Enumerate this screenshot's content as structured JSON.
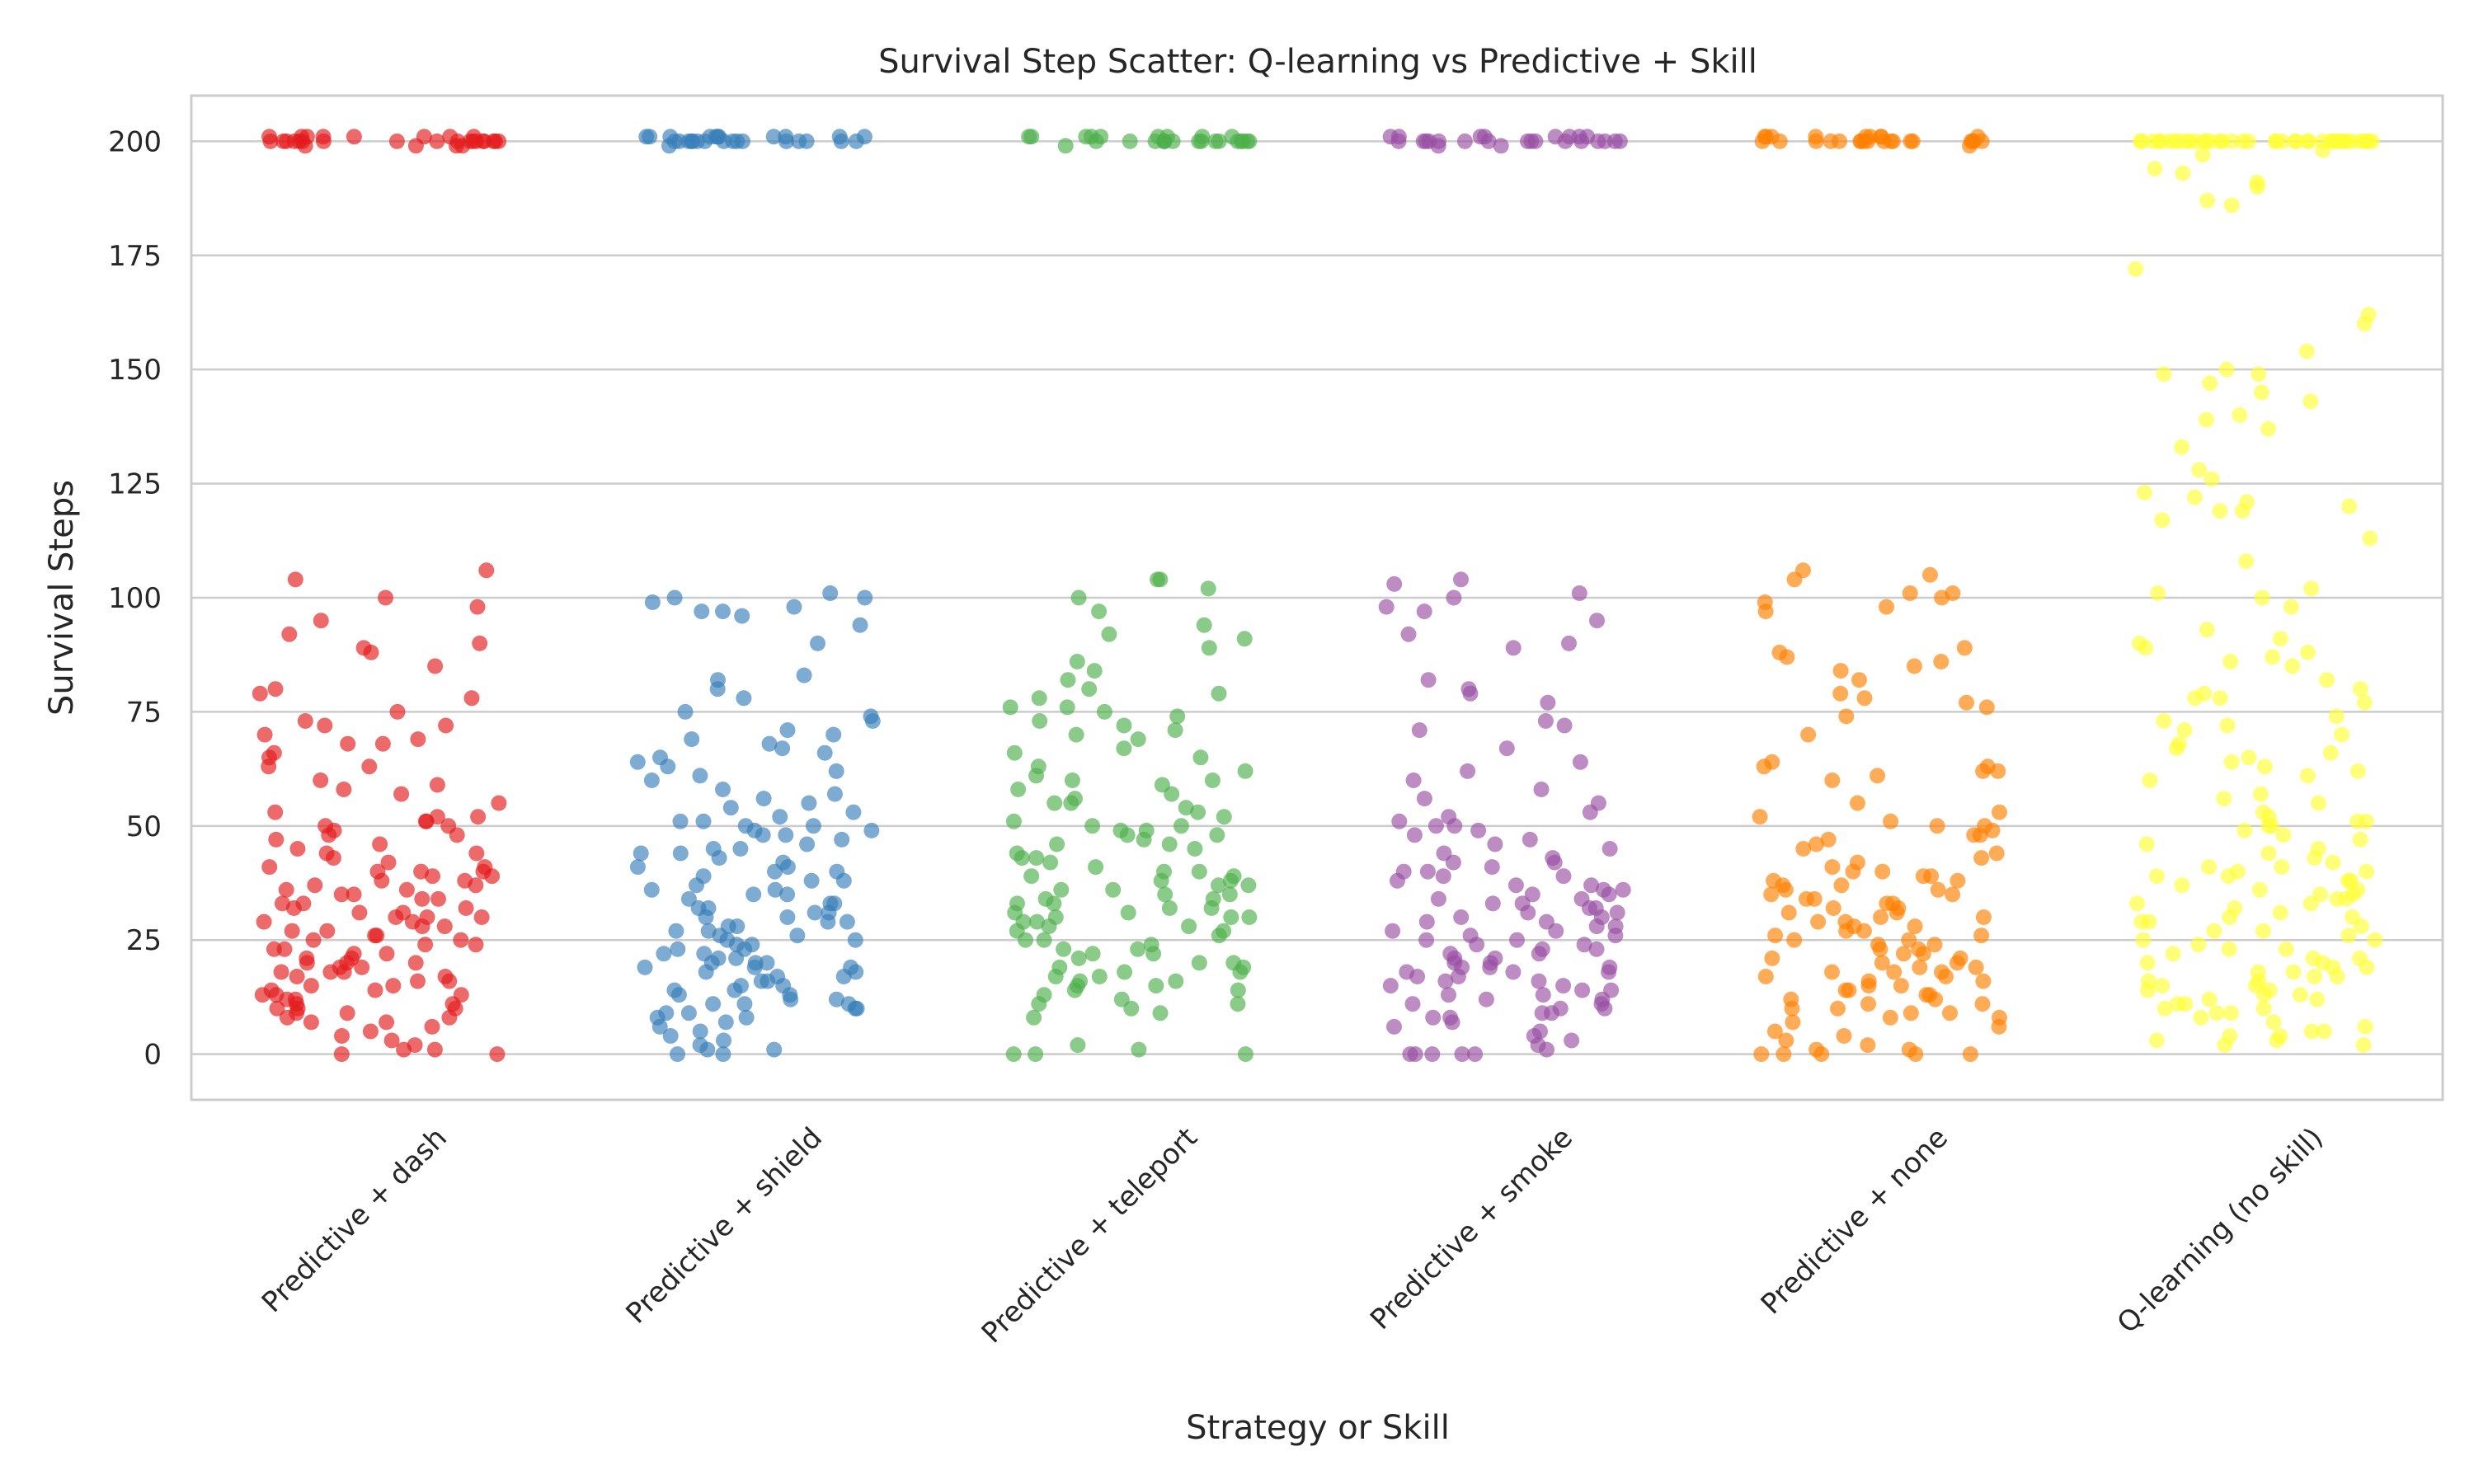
{
  "chart_data": {
    "type": "scatter",
    "title": "Survival Step Scatter: Q-learning vs Predictive + Skill",
    "xlabel": "Strategy or Skill",
    "ylabel": "Survival Steps",
    "ylim": [
      -10,
      210
    ],
    "yticks": [
      0,
      25,
      50,
      75,
      100,
      125,
      150,
      175,
      200
    ],
    "grid": true,
    "legend": "none",
    "categories": [
      "Predictive + dash",
      "Predictive + shield",
      "Predictive + teleport",
      "Predictive + smoke",
      "Predictive + none",
      "Q-learning (no skill)"
    ],
    "series": [
      {
        "category": "Predictive + dash",
        "color": "#e41a1c",
        "values": [
          200,
          201,
          200,
          199,
          200,
          201,
          200,
          200,
          201,
          199,
          200,
          200,
          201,
          200,
          200,
          199,
          201,
          200,
          200,
          200,
          201,
          200,
          199,
          200,
          200,
          201,
          200,
          200,
          200,
          201,
          106,
          104,
          100,
          98,
          95,
          92,
          90,
          89,
          88,
          85,
          80,
          79,
          78,
          75,
          73,
          72,
          72,
          70,
          69,
          68,
          68,
          66,
          65,
          63,
          63,
          60,
          59,
          58,
          57,
          55,
          53,
          52,
          52,
          51,
          51,
          50,
          50,
          49,
          48,
          48,
          47,
          46,
          45,
          44,
          44,
          43,
          42,
          41,
          41,
          40,
          40,
          40,
          39,
          39,
          38,
          38,
          37,
          37,
          36,
          36,
          35,
          35,
          34,
          34,
          33,
          33,
          32,
          32,
          31,
          31,
          30,
          30,
          30,
          29,
          29,
          28,
          28,
          27,
          27,
          26,
          26,
          25,
          25,
          24,
          24,
          23,
          23,
          22,
          22,
          21,
          21,
          20,
          20,
          20,
          19,
          19,
          18,
          18,
          18,
          17,
          17,
          16,
          16,
          15,
          15,
          14,
          14,
          13,
          13,
          13,
          12,
          12,
          11,
          11,
          10,
          10,
          10,
          9,
          9,
          8,
          8,
          7,
          7,
          6,
          5,
          4,
          3,
          2,
          1,
          1,
          0,
          0
        ]
      },
      {
        "category": "Predictive + shield",
        "color": "#377eb8",
        "values": [
          201,
          200,
          201,
          200,
          200,
          201,
          200,
          199,
          200,
          201,
          200,
          200,
          201,
          200,
          200,
          201,
          200,
          201,
          200,
          200,
          201,
          200,
          200,
          201,
          200,
          201,
          200,
          201,
          101,
          100,
          100,
          99,
          98,
          97,
          97,
          96,
          94,
          90,
          83,
          82,
          80,
          78,
          75,
          74,
          73,
          71,
          70,
          69,
          68,
          67,
          66,
          65,
          64,
          63,
          62,
          61,
          60,
          58,
          57,
          56,
          55,
          54,
          53,
          52,
          51,
          51,
          50,
          50,
          49,
          49,
          48,
          48,
          47,
          46,
          45,
          45,
          44,
          44,
          43,
          42,
          41,
          41,
          40,
          40,
          39,
          38,
          38,
          37,
          36,
          36,
          35,
          35,
          34,
          33,
          33,
          32,
          32,
          31,
          31,
          30,
          30,
          29,
          29,
          28,
          28,
          27,
          27,
          26,
          26,
          25,
          25,
          24,
          24,
          23,
          23,
          22,
          22,
          21,
          21,
          20,
          20,
          20,
          19,
          19,
          19,
          18,
          18,
          17,
          17,
          16,
          16,
          15,
          15,
          14,
          14,
          13,
          13,
          12,
          12,
          11,
          11,
          11,
          10,
          10,
          9,
          9,
          8,
          8,
          7,
          6,
          5,
          4,
          3,
          2,
          1,
          1,
          0,
          0
        ]
      },
      {
        "category": "Predictive + teleport",
        "color": "#4daf4a",
        "values": [
          200,
          201,
          200,
          200,
          199,
          200,
          201,
          200,
          200,
          201,
          200,
          200,
          201,
          200,
          200,
          201,
          200,
          200,
          201,
          200,
          201,
          200,
          201,
          200,
          201,
          200,
          104,
          104,
          102,
          100,
          97,
          94,
          92,
          91,
          89,
          86,
          84,
          82,
          80,
          79,
          78,
          76,
          76,
          75,
          74,
          73,
          72,
          71,
          70,
          69,
          67,
          66,
          65,
          63,
          62,
          61,
          60,
          60,
          59,
          58,
          57,
          56,
          55,
          55,
          54,
          53,
          52,
          51,
          50,
          50,
          49,
          49,
          48,
          48,
          47,
          46,
          46,
          45,
          44,
          43,
          43,
          42,
          41,
          40,
          40,
          39,
          39,
          38,
          38,
          37,
          37,
          36,
          36,
          35,
          35,
          34,
          34,
          33,
          33,
          32,
          32,
          31,
          31,
          30,
          30,
          30,
          29,
          29,
          28,
          28,
          27,
          27,
          26,
          25,
          25,
          24,
          23,
          23,
          22,
          22,
          21,
          20,
          20,
          19,
          19,
          18,
          18,
          17,
          17,
          16,
          16,
          15,
          15,
          14,
          14,
          13,
          12,
          11,
          11,
          10,
          9,
          8,
          2,
          1,
          0,
          0,
          0
        ]
      },
      {
        "category": "Predictive + smoke",
        "color": "#984ea3",
        "values": [
          200,
          201,
          200,
          200,
          199,
          201,
          200,
          200,
          201,
          200,
          200,
          200,
          201,
          200,
          199,
          200,
          201,
          200,
          200,
          201,
          200,
          201,
          200,
          200,
          201,
          200,
          104,
          103,
          101,
          100,
          98,
          97,
          95,
          92,
          90,
          89,
          82,
          80,
          79,
          77,
          73,
          72,
          71,
          67,
          64,
          62,
          60,
          58,
          56,
          55,
          53,
          52,
          51,
          50,
          50,
          49,
          48,
          47,
          46,
          45,
          44,
          43,
          42,
          42,
          41,
          40,
          40,
          39,
          39,
          38,
          37,
          37,
          36,
          36,
          35,
          35,
          34,
          34,
          33,
          33,
          32,
          32,
          31,
          31,
          30,
          30,
          29,
          29,
          28,
          28,
          27,
          27,
          26,
          26,
          25,
          25,
          24,
          24,
          23,
          23,
          22,
          22,
          21,
          21,
          20,
          20,
          19,
          19,
          19,
          18,
          18,
          18,
          17,
          17,
          16,
          16,
          15,
          15,
          14,
          14,
          13,
          13,
          12,
          12,
          11,
          11,
          10,
          10,
          9,
          9,
          8,
          8,
          7,
          6,
          5,
          4,
          3,
          2,
          1,
          0,
          0,
          0,
          0,
          0
        ]
      },
      {
        "category": "Predictive + none",
        "color": "#ff7f00",
        "values": [
          200,
          201,
          200,
          200,
          201,
          200,
          200,
          199,
          200,
          201,
          200,
          200,
          201,
          200,
          200,
          201,
          200,
          200,
          201,
          200,
          200,
          201,
          200,
          201,
          200,
          200,
          201,
          200,
          106,
          105,
          104,
          101,
          101,
          100,
          99,
          98,
          97,
          89,
          88,
          87,
          86,
          85,
          84,
          82,
          79,
          78,
          77,
          76,
          74,
          70,
          64,
          63,
          63,
          62,
          62,
          61,
          60,
          55,
          53,
          52,
          51,
          50,
          50,
          49,
          48,
          48,
          47,
          46,
          45,
          44,
          43,
          42,
          41,
          40,
          40,
          39,
          39,
          38,
          38,
          37,
          37,
          36,
          36,
          35,
          35,
          34,
          34,
          33,
          33,
          32,
          32,
          31,
          31,
          30,
          30,
          29,
          29,
          28,
          28,
          27,
          27,
          26,
          26,
          25,
          25,
          24,
          24,
          23,
          23,
          22,
          22,
          21,
          21,
          20,
          20,
          19,
          19,
          18,
          18,
          18,
          17,
          17,
          16,
          16,
          15,
          15,
          14,
          14,
          13,
          13,
          12,
          12,
          11,
          11,
          10,
          10,
          9,
          9,
          8,
          8,
          7,
          6,
          5,
          4,
          3,
          2,
          1,
          1,
          0,
          0,
          0,
          0,
          0
        ]
      },
      {
        "category": "Q-learning (no skill)",
        "color": "#ffff33",
        "values": [
          200,
          200,
          200,
          200,
          200,
          200,
          200,
          200,
          200,
          200,
          200,
          200,
          200,
          200,
          200,
          200,
          200,
          200,
          200,
          200,
          200,
          200,
          200,
          200,
          200,
          200,
          200,
          200,
          200,
          200,
          200,
          200,
          200,
          200,
          200,
          200,
          200,
          200,
          200,
          200,
          198,
          197,
          194,
          193,
          191,
          190,
          187,
          186,
          172,
          162,
          160,
          154,
          150,
          149,
          149,
          147,
          145,
          143,
          140,
          139,
          137,
          133,
          128,
          126,
          123,
          122,
          121,
          120,
          119,
          119,
          117,
          113,
          108,
          102,
          101,
          100,
          98,
          93,
          91,
          90,
          89,
          88,
          87,
          86,
          85,
          82,
          80,
          79,
          78,
          78,
          77,
          74,
          73,
          72,
          71,
          70,
          68,
          67,
          66,
          65,
          64,
          63,
          62,
          61,
          60,
          57,
          56,
          55,
          53,
          52,
          51,
          51,
          50,
          50,
          49,
          48,
          47,
          46,
          45,
          44,
          43,
          42,
          41,
          41,
          40,
          40,
          39,
          39,
          38,
          38,
          37,
          36,
          36,
          35,
          35,
          34,
          34,
          33,
          33,
          32,
          31,
          30,
          30,
          29,
          29,
          28,
          27,
          27,
          26,
          25,
          25,
          24,
          23,
          23,
          22,
          21,
          21,
          20,
          20,
          19,
          19,
          18,
          18,
          17,
          17,
          16,
          16,
          15,
          15,
          14,
          14,
          13,
          13,
          12,
          12,
          11,
          11,
          10,
          10,
          9,
          9,
          8,
          7,
          6,
          5,
          5,
          4,
          4,
          3,
          3,
          2,
          2
        ]
      }
    ]
  }
}
